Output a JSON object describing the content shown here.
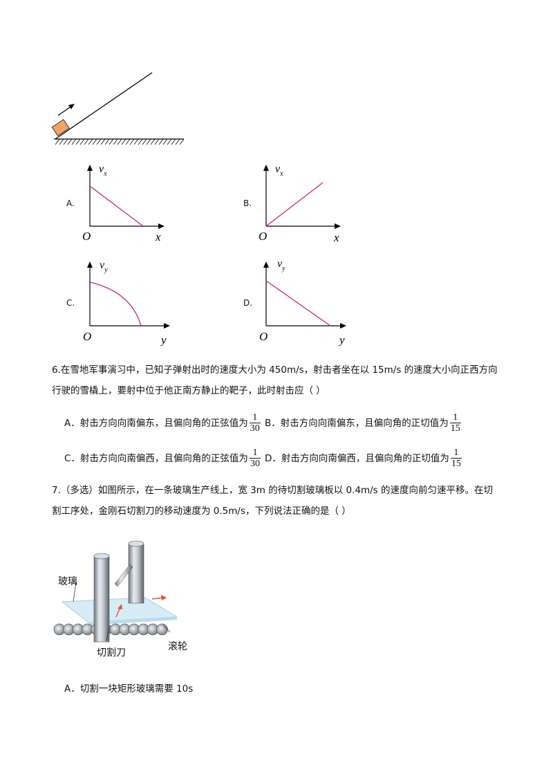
{
  "incline_figure": {
    "slope_color": "#000000",
    "block_color": "#f4a460"
  },
  "graphs": [
    {
      "option": "A.",
      "y_axis": "v",
      "y_sub": "x",
      "x_axis": "x",
      "origin": "O",
      "curve": "linear-decreasing"
    },
    {
      "option": "B.",
      "y_axis": "v",
      "y_sub": "x",
      "x_axis": "x",
      "origin": "O",
      "curve": "linear-increasing"
    },
    {
      "option": "C.",
      "y_axis": "v",
      "y_sub": "y",
      "x_axis": "y",
      "origin": "O",
      "curve": "concave-down-decreasing"
    },
    {
      "option": "D.",
      "y_axis": "v",
      "y_sub": "y",
      "x_axis": "y",
      "origin": "O",
      "curve": "linear-decreasing"
    }
  ],
  "curve_color": "#c8265a",
  "q6": {
    "line1": "6.在雪地军事演习中，已知子弹射出时的速度大小为 450m/s，射击者坐在以 15m/s 的速度大小向正西方向",
    "line2": "行驶的雪橇上，要射中位于他正南方静止的靶子，此时射击应（        ）",
    "options": [
      {
        "text": "A．射击方向向南偏东，且偏向角的正弦值为",
        "num": "1",
        "den": "30"
      },
      {
        "text": "B．射击方向向南偏东，且偏向角的正切值为",
        "num": "1",
        "den": "15"
      },
      {
        "text": "C．射击方向向南偏西，且偏向角的正弦值为",
        "num": "1",
        "den": "30"
      },
      {
        "text": "D．射击方向向南偏西，且偏向角的正切值为",
        "num": "1",
        "den": "15"
      }
    ]
  },
  "q7": {
    "line1": "7.（多选）如图所示，在一条玻璃生产线上，宽 3m 的待切割玻璃板以 0.4m/s 的速度向前匀速平移。在切",
    "line2": "割工序处，金刚石切割刀的移动速度为 0.5m/s，下列说法正确的是（        ）",
    "figure": {
      "glass_label": "玻璃",
      "cutter_label": "切割刀",
      "roller_label": "滚轮"
    },
    "option_a": "A．切割一块矩形玻璃需要 10s"
  }
}
